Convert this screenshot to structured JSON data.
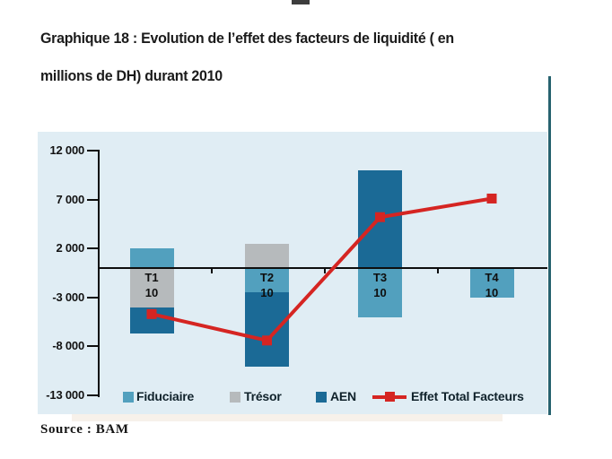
{
  "title": {
    "line1": "Graphique 18 : Evolution de l’effet des facteurs de liquidité ( en",
    "line2": "millions de DH) durant 2010"
  },
  "source": "Source : BAM",
  "chart_data": {
    "type": "bar",
    "subtype": "stacked-bar-with-line",
    "title": "Graphique 18 : Evolution de l’effet des facteurs de liquidité (en millions de DH) durant 2010",
    "unit": "millions de DH",
    "categories": [
      "T1",
      "T2",
      "T3",
      "T4"
    ],
    "category_suffix": "10",
    "ylim": [
      -13000,
      12000
    ],
    "ytick_step": 5000,
    "yticks": [
      {
        "value": 12000,
        "label": "12 000"
      },
      {
        "value": 7000,
        "label": "7 000"
      },
      {
        "value": 2000,
        "label": "2 000"
      },
      {
        "value": -3000,
        "label": "-3 000"
      },
      {
        "value": -8000,
        "label": "-8 000"
      },
      {
        "value": -13000,
        "label": "-13 000"
      }
    ],
    "series": [
      {
        "name": "Fiduciaire",
        "type": "bar",
        "color": "#52a0be",
        "values": [
          2000,
          -2500,
          -5000,
          -3000
        ]
      },
      {
        "name": "Trésor",
        "type": "bar",
        "color": "#b6babc",
        "values": [
          -4000,
          2500,
          0,
          0
        ]
      },
      {
        "name": "AEN",
        "type": "bar",
        "color": "#1b6a96",
        "values": [
          -2700,
          -7600,
          10000,
          0
        ]
      },
      {
        "name": "Effet Total Facteurs",
        "type": "line",
        "color": "#d52522",
        "values": [
          -4700,
          -7400,
          5200,
          7100
        ]
      }
    ],
    "legend": [
      "Fiduciaire",
      "Trésor",
      "AEN",
      "Effet Total Facteurs"
    ],
    "legend_position": "bottom",
    "grid": false,
    "plot_bg": "#e0edf4",
    "axis_color": "#0e0e0e"
  }
}
